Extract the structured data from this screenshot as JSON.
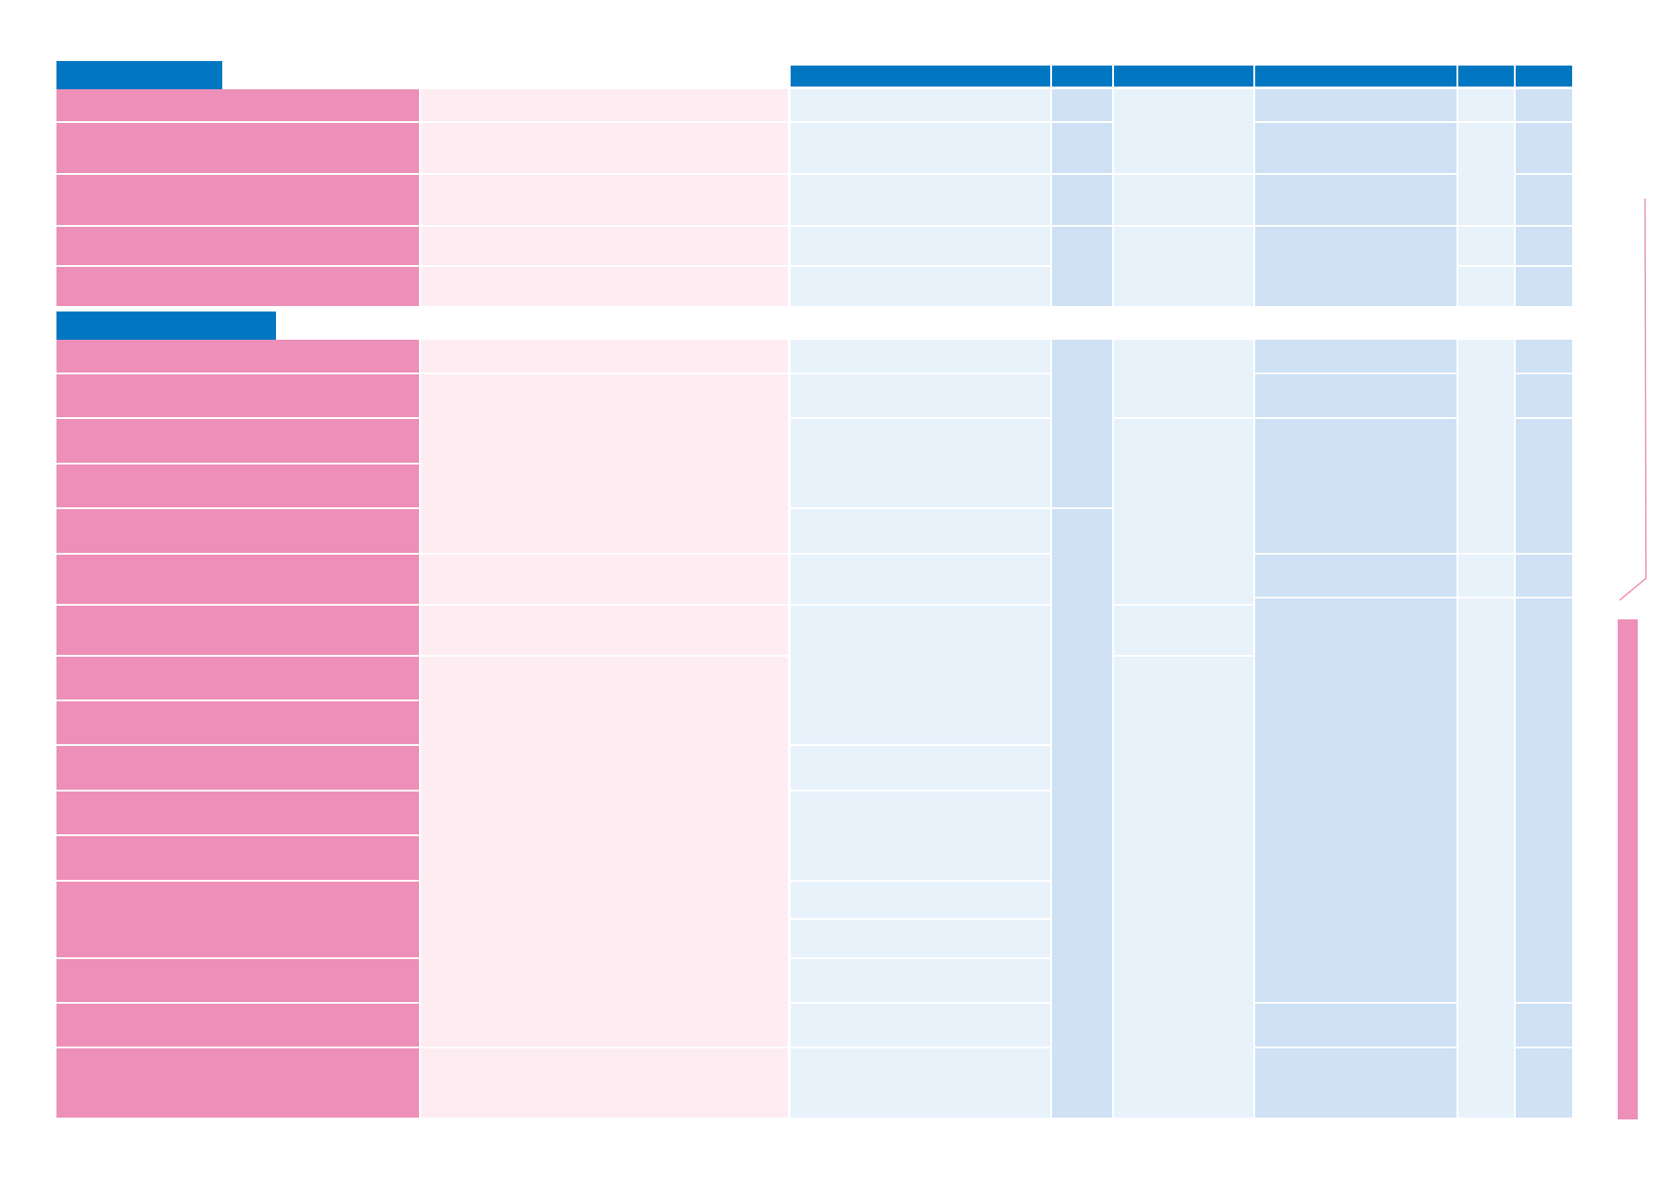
{
  "colors": {
    "tab_blue": "#0077c0",
    "header_blue": "#0077c0",
    "pink_dark": "#ed8fb8",
    "pink_light": "#fdecf2",
    "blue_light": "#e8f2fb",
    "blue_mid": "#cfe1f4"
  },
  "sections": [
    {
      "name": "section-1",
      "title": "",
      "row_count": 5
    },
    {
      "name": "section-2",
      "title": "",
      "row_count": 17
    }
  ],
  "table_header": {
    "columns": [
      "",
      "",
      "",
      "",
      "",
      ""
    ]
  }
}
